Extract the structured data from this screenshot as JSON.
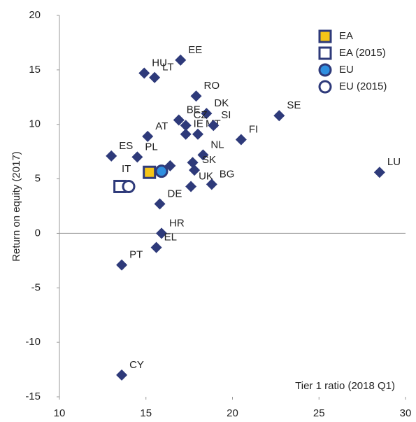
{
  "chart_data": {
    "type": "scatter",
    "x_label": "Tier 1 ratio (2018 Q1)",
    "y_label": "Return on equity (2017)",
    "xlim": [
      10,
      30
    ],
    "xticks": [
      10,
      15,
      20,
      25,
      30
    ],
    "ylim": [
      -15,
      20
    ],
    "yticks": [
      -15,
      -10,
      -5,
      0,
      5,
      10,
      15,
      20
    ],
    "legend": "top-right",
    "series": [
      {
        "marker": "diamond",
        "color": "#2e3a7a",
        "x": [
          17.0,
          14.9,
          15.5,
          17.9,
          18.5,
          22.7,
          16.9,
          17.3,
          18.0,
          18.9,
          15.1,
          20.5,
          17.3,
          18.3,
          13.0,
          14.5,
          16.4,
          17.7,
          17.8,
          17.6,
          18.8,
          28.5,
          15.8,
          15.9,
          15.6,
          13.6,
          13.6
        ],
        "values": [
          15.9,
          14.7,
          14.3,
          12.6,
          11.0,
          10.8,
          10.4,
          9.9,
          9.1,
          9.9,
          8.9,
          8.6,
          9.1,
          7.2,
          7.1,
          7.0,
          6.2,
          6.5,
          5.8,
          4.3,
          4.5,
          5.6,
          2.7,
          0.0,
          -1.3,
          -2.9,
          -13.0
        ],
        "labels": [
          "EE",
          "HU",
          "LT",
          "RO",
          "DK",
          "SE",
          "BE",
          "CZ",
          "MT",
          "SI",
          "AT",
          "FI",
          "IE",
          "NL",
          "ES",
          "PL",
          null,
          null,
          "SK",
          "UK",
          "BG",
          "LU",
          "DE",
          "HR",
          "EL",
          "PT",
          "CY"
        ]
      },
      {
        "name": "EA",
        "marker": "square",
        "color": "#f5c518",
        "edge": "#2e3a7a",
        "x": [
          15.2
        ],
        "values": [
          5.6
        ]
      },
      {
        "name": "EA (2015)",
        "marker": "square",
        "color": "#ffffff",
        "edge": "#2e3a7a",
        "x": [
          13.5
        ],
        "values": [
          4.3
        ]
      },
      {
        "name": "EU",
        "marker": "circle",
        "color": "#2f8fe0",
        "edge": "#2e3a7a",
        "x": [
          15.9
        ],
        "values": [
          5.7
        ]
      },
      {
        "name": "EU (2015)",
        "marker": "circle",
        "color": "#ffffff",
        "edge": "#2e3a7a",
        "x": [
          14.0
        ],
        "values": [
          4.3
        ]
      }
    ],
    "annotations": [
      "IT"
    ]
  }
}
